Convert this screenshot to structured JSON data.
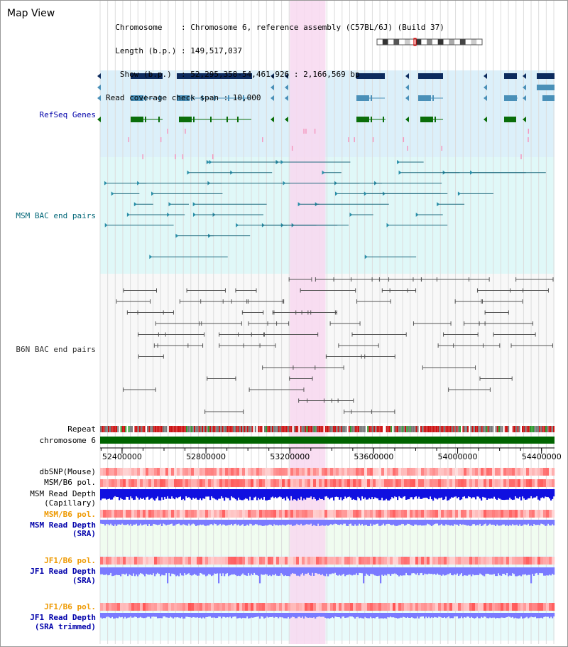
{
  "header": {
    "view_title": "Map View",
    "info_lines": [
      "  Chromosome    : Chromosome 6, reference assembly (C57BL/6J) (Build 37)",
      "  Length (b.p.) : 149,517,037",
      "   Show (b.p.)  : 52,295,358-54,461,926 : 2,166,569 bp",
      "Read coverage check span : 10,000"
    ]
  },
  "genome": {
    "start": 52295358,
    "end": 54461926,
    "highlight_start": 53200000,
    "highlight_end": 53370000,
    "axis_ticks": [
      "52400000",
      "52800000",
      "53200000",
      "53600000",
      "54000000",
      "54400000"
    ]
  },
  "tracks": {
    "refseq": {
      "label": "RefSeq Genes",
      "color": "#0000aa"
    },
    "msm_bac": {
      "label": "MSM BAC end pairs",
      "color": "#006677"
    },
    "b6n_bac": {
      "label": "B6N BAC end pairs",
      "color": "#333333"
    },
    "repeat": {
      "label": "Repeat",
      "color": "#000000"
    },
    "chromosome": {
      "label": "chromosome 6",
      "color": "#000000"
    },
    "dbsnp": {
      "label": "dbSNP(Mouse)",
      "color": "#000000"
    },
    "msm_b6_pol_1": {
      "label": "MSM/B6 pol.",
      "color": "#000000"
    },
    "msm_read_depth_cap": {
      "label_line1": "MSM Read Depth",
      "label_line2": "(Capillary)",
      "color": "#000000"
    },
    "msm_b6_pol_2": {
      "label": "MSM/B6 pol.",
      "color": "#ee9900"
    },
    "msm_read_depth_sra": {
      "label_line1": "MSM Read Depth",
      "label_line2": "(SRA)",
      "color": "#0000aa"
    },
    "jf1_b6_pol_1": {
      "label": "JF1/B6 pol.",
      "color": "#ee9900"
    },
    "jf1_read_depth_sra": {
      "label_line1": "JF1 Read Depth",
      "label_line2": "(SRA)",
      "color": "#0000aa"
    },
    "jf1_b6_pol_2": {
      "label": "JF1/B6 pol.",
      "color": "#ee9900"
    },
    "jf1_read_depth_trim": {
      "label_line1": "JF1 Read Depth",
      "label_line2": "(SRA trimmed)",
      "color": "#0000aa"
    }
  },
  "colors": {
    "refseq_bg": "#dcf0fa",
    "msm_bg": "#e0f8f8",
    "b6n_bg": "#f8f8f8",
    "highlight": "#f8d8f0",
    "gene_dark": "#0d2b5e",
    "gene_mid": "#4a90b8",
    "gene_green": "#0a6e0a",
    "chromosome_bar": "#006400",
    "depth_cap": "#1010e0",
    "depth_sra": "#7a7aff"
  }
}
